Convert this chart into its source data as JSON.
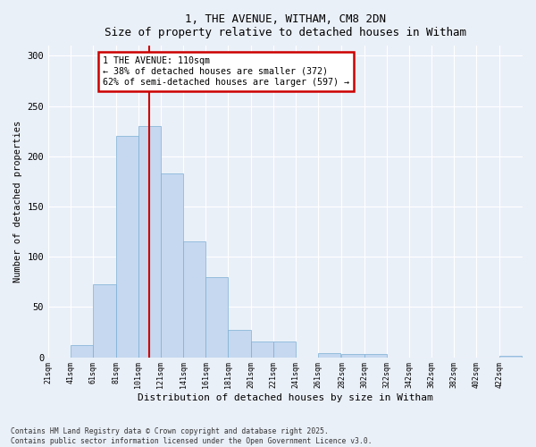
{
  "title_line1": "1, THE AVENUE, WITHAM, CM8 2DN",
  "title_line2": "Size of property relative to detached houses in Witham",
  "xlabel": "Distribution of detached houses by size in Witham",
  "ylabel": "Number of detached properties",
  "property_label": "1 THE AVENUE: 110sqm",
  "annotation_line1": "← 38% of detached houses are smaller (372)",
  "annotation_line2": "62% of semi-detached houses are larger (597) →",
  "bins_start": [
    21,
    41,
    61,
    81,
    101,
    121,
    141,
    161,
    181,
    201,
    221,
    241,
    261,
    282,
    302,
    322,
    342,
    362,
    382,
    402,
    422
  ],
  "bar_heights": [
    0,
    12,
    73,
    220,
    230,
    183,
    115,
    80,
    27,
    16,
    16,
    0,
    4,
    3,
    3,
    0,
    0,
    0,
    0,
    0,
    1
  ],
  "bar_color": "#c5d8f0",
  "bar_edge_color": "#7bafd4",
  "vline_x": 111,
  "vline_color": "#cc0000",
  "box_color": "#cc0000",
  "ylim": [
    0,
    310
  ],
  "yticks": [
    0,
    50,
    100,
    150,
    200,
    250,
    300
  ],
  "xlim_left": 21,
  "xlim_right": 443,
  "background_color": "#eaf0f8",
  "grid_color": "#ffffff",
  "footer_line1": "Contains HM Land Registry data © Crown copyright and database right 2025.",
  "footer_line2": "Contains public sector information licensed under the Open Government Licence v3.0."
}
